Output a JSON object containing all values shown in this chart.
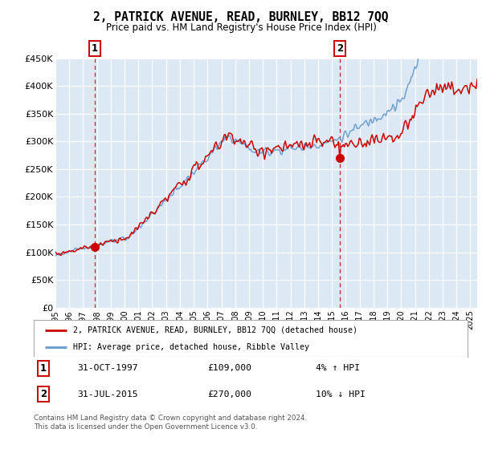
{
  "title": "2, PATRICK AVENUE, READ, BURNLEY, BB12 7QQ",
  "subtitle": "Price paid vs. HM Land Registry's House Price Index (HPI)",
  "ylim": [
    0,
    450000
  ],
  "yticks": [
    0,
    50000,
    100000,
    150000,
    200000,
    250000,
    300000,
    350000,
    400000,
    450000
  ],
  "ytick_labels": [
    "£0",
    "£50K",
    "£100K",
    "£150K",
    "£200K",
    "£250K",
    "£300K",
    "£350K",
    "£400K",
    "£450K"
  ],
  "xlim_start": 1995.0,
  "xlim_end": 2025.5,
  "plot_bg_color": "#dce9f5",
  "red_line_color": "#cc0000",
  "blue_line_color": "#6699cc",
  "marker1_x": 1997.833,
  "marker1_y": 109000,
  "marker1_label": "31-OCT-1997",
  "marker1_price": "£109,000",
  "marker1_hpi": "4% ↑ HPI",
  "marker2_x": 2015.583,
  "marker2_y": 270000,
  "marker2_label": "31-JUL-2015",
  "marker2_price": "£270,000",
  "marker2_hpi": "10% ↓ HPI",
  "legend_line1": "2, PATRICK AVENUE, READ, BURNLEY, BB12 7QQ (detached house)",
  "legend_line2": "HPI: Average price, detached house, Ribble Valley",
  "footnote": "Contains HM Land Registry data © Crown copyright and database right 2024.\nThis data is licensed under the Open Government Licence v3.0.",
  "xtick_years": [
    1995,
    1996,
    1997,
    1998,
    1999,
    2000,
    2001,
    2002,
    2003,
    2004,
    2005,
    2006,
    2007,
    2008,
    2009,
    2010,
    2011,
    2012,
    2013,
    2014,
    2015,
    2016,
    2017,
    2018,
    2019,
    2020,
    2021,
    2022,
    2023,
    2024,
    2025
  ]
}
